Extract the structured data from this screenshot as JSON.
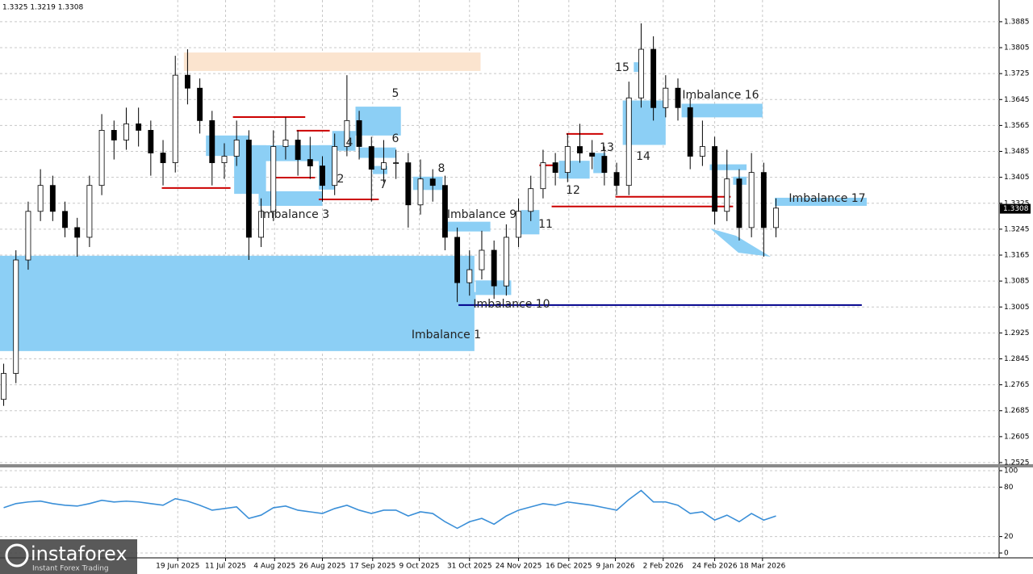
{
  "header": "1.3325 1.3219 1.3308",
  "branding": {
    "name": "instaforex",
    "tagline": "Instant Forex Trading"
  },
  "chart_data": [
    {
      "type": "candlestick",
      "ohlc": [
        [
          1.272,
          1.283,
          1.27,
          1.28
        ],
        [
          1.28,
          1.318,
          1.277,
          1.315
        ],
        [
          1.315,
          1.333,
          1.312,
          1.33
        ],
        [
          1.33,
          1.343,
          1.327,
          1.338
        ],
        [
          1.338,
          1.341,
          1.327,
          1.33
        ],
        [
          1.33,
          1.333,
          1.322,
          1.325
        ],
        [
          1.325,
          1.328,
          1.316,
          1.322
        ],
        [
          1.322,
          1.341,
          1.319,
          1.338
        ],
        [
          1.338,
          1.36,
          1.335,
          1.355
        ],
        [
          1.355,
          1.358,
          1.346,
          1.352
        ],
        [
          1.352,
          1.362,
          1.349,
          1.357
        ],
        [
          1.357,
          1.362,
          1.35,
          1.355
        ],
        [
          1.355,
          1.358,
          1.341,
          1.348
        ],
        [
          1.348,
          1.352,
          1.338,
          1.345
        ],
        [
          1.345,
          1.378,
          1.342,
          1.372
        ],
        [
          1.372,
          1.38,
          1.363,
          1.368
        ],
        [
          1.368,
          1.371,
          1.354,
          1.358
        ],
        [
          1.358,
          1.361,
          1.338,
          1.345
        ],
        [
          1.345,
          1.351,
          1.34,
          1.347
        ],
        [
          1.347,
          1.358,
          1.344,
          1.352
        ],
        [
          1.352,
          1.355,
          1.315,
          1.322
        ],
        [
          1.322,
          1.334,
          1.319,
          1.33
        ],
        [
          1.33,
          1.355,
          1.327,
          1.35
        ],
        [
          1.35,
          1.359,
          1.346,
          1.352
        ],
        [
          1.352,
          1.355,
          1.341,
          1.346
        ],
        [
          1.346,
          1.353,
          1.34,
          1.344
        ],
        [
          1.344,
          1.347,
          1.333,
          1.338
        ],
        [
          1.338,
          1.354,
          1.335,
          1.35
        ],
        [
          1.35,
          1.372,
          1.347,
          1.358
        ],
        [
          1.358,
          1.361,
          1.346,
          1.35
        ],
        [
          1.35,
          1.353,
          1.333,
          1.343
        ],
        [
          1.343,
          1.352,
          1.339,
          1.345
        ],
        [
          1.345,
          1.349,
          1.34,
          1.345
        ],
        [
          1.345,
          1.348,
          1.325,
          1.332
        ],
        [
          1.332,
          1.346,
          1.329,
          1.34
        ],
        [
          1.34,
          1.343,
          1.333,
          1.338
        ],
        [
          1.338,
          1.341,
          1.318,
          1.322
        ],
        [
          1.322,
          1.325,
          1.302,
          1.308
        ],
        [
          1.308,
          1.318,
          1.304,
          1.312
        ],
        [
          1.312,
          1.324,
          1.309,
          1.318
        ],
        [
          1.318,
          1.321,
          1.303,
          1.307
        ],
        [
          1.307,
          1.326,
          1.304,
          1.322
        ],
        [
          1.322,
          1.334,
          1.319,
          1.33
        ],
        [
          1.33,
          1.341,
          1.327,
          1.337
        ],
        [
          1.337,
          1.349,
          1.334,
          1.345
        ],
        [
          1.345,
          1.348,
          1.338,
          1.342
        ],
        [
          1.342,
          1.354,
          1.339,
          1.35
        ],
        [
          1.35,
          1.357,
          1.345,
          1.348
        ],
        [
          1.348,
          1.352,
          1.343,
          1.347
        ],
        [
          1.347,
          1.35,
          1.338,
          1.342
        ],
        [
          1.342,
          1.345,
          1.335,
          1.338
        ],
        [
          1.338,
          1.37,
          1.335,
          1.365
        ],
        [
          1.365,
          1.388,
          1.362,
          1.38
        ],
        [
          1.38,
          1.384,
          1.358,
          1.362
        ],
        [
          1.362,
          1.372,
          1.359,
          1.368
        ],
        [
          1.368,
          1.371,
          1.358,
          1.362
        ],
        [
          1.362,
          1.365,
          1.343,
          1.347
        ],
        [
          1.347,
          1.358,
          1.344,
          1.35
        ],
        [
          1.35,
          1.353,
          1.326,
          1.33
        ],
        [
          1.33,
          1.349,
          1.327,
          1.34
        ],
        [
          1.34,
          1.343,
          1.321,
          1.325
        ],
        [
          1.325,
          1.348,
          1.322,
          1.342
        ],
        [
          1.342,
          1.345,
          1.316,
          1.325
        ],
        [
          1.325,
          1.334,
          1.322,
          1.331
        ]
      ],
      "xlim": [
        -0.3,
        81.2
      ],
      "ylim": [
        1.252,
        1.3952
      ],
      "yticks": [
        1.3885,
        1.3805,
        1.3725,
        1.3645,
        1.3565,
        1.3485,
        1.3405,
        1.3325,
        1.3245,
        1.3165,
        1.3085,
        1.3005,
        1.2925,
        1.2845,
        1.2765,
        1.2685,
        1.2605,
        1.2525
      ],
      "grid": true,
      "last_price": 1.3308,
      "zones": [
        {
          "label": "Imbalance 1",
          "x": [
            -0.3,
            38.4
          ],
          "y": [
            1.2869,
            1.3163
          ],
          "color": "#8ccff5"
        },
        {
          "label": null,
          "x": [
            14.7,
            38.9
          ],
          "y": [
            1.3733,
            1.379
          ],
          "color": "#fbe4cf"
        },
        {
          "label": null,
          "x": [
            16.5,
            20.0
          ],
          "y": [
            1.3471,
            1.3534
          ],
          "color": "#8ccff5"
        },
        {
          "label": null,
          "x": [
            18.8,
            21.4
          ],
          "y": [
            1.3354,
            1.3504
          ],
          "color": "#8ccff5"
        },
        {
          "label": null,
          "x": [
            20.1,
            26.7
          ],
          "y": [
            1.3455,
            1.3504
          ],
          "color": "#8ccff5"
        },
        {
          "label": "Imbalance 3",
          "x": [
            20.8,
            26.0
          ],
          "y": [
            1.3317,
            1.3362
          ],
          "color": "#8ccff5"
        },
        {
          "label": "2",
          "x": [
            25.7,
            27.0
          ],
          "y": [
            1.3367,
            1.3504
          ],
          "color": "#8ccff5"
        },
        {
          "label": "4",
          "x": [
            26.8,
            28.7
          ],
          "y": [
            1.3487,
            1.3548
          ],
          "color": "#8ccff5"
        },
        {
          "label": "5",
          "x": [
            28.7,
            32.4
          ],
          "y": [
            1.3534,
            1.3623
          ],
          "color": "#8ccff5"
        },
        {
          "label": "6",
          "x": [
            29.0,
            32.0
          ],
          "y": [
            1.3465,
            1.3497
          ],
          "color": "#8ccff5"
        },
        {
          "label": "7",
          "x": [
            30.1,
            31.3
          ],
          "y": [
            1.3415,
            1.344
          ],
          "color": "#8ccff5"
        },
        {
          "label": "8",
          "x": [
            33.4,
            35.8
          ],
          "y": [
            1.3366,
            1.3407
          ],
          "color": "#8ccff5"
        },
        {
          "label": "Imbalance 9",
          "x": [
            36.2,
            39.7
          ],
          "y": [
            1.3238,
            1.3268
          ],
          "color": "#8ccff5"
        },
        {
          "label": "Imbalance 10",
          "x": [
            38.5,
            41.4
          ],
          "y": [
            1.3042,
            1.3087
          ],
          "color": "#8ccff5"
        },
        {
          "label": null,
          "x": [
            37.1,
            38.5
          ],
          "y": [
            1.3011,
            1.3051
          ],
          "color": "#8ccff5"
        },
        {
          "label": "11",
          "x": [
            42.2,
            43.7
          ],
          "y": [
            1.3229,
            1.3304
          ],
          "color": "#8ccff5"
        },
        {
          "label": "12",
          "x": [
            45.3,
            47.8
          ],
          "y": [
            1.3401,
            1.3456
          ],
          "color": "#8ccff5"
        },
        {
          "label": "13",
          "x": [
            48.1,
            49.1
          ],
          "y": [
            1.3418,
            1.348
          ],
          "color": "#8ccff5"
        },
        {
          "label": "14",
          "x": [
            50.5,
            54.0
          ],
          "y": [
            1.3505,
            1.3642
          ],
          "color": "#8ccff5"
        },
        {
          "label": "15",
          "x": [
            51.4,
            52.0
          ],
          "y": [
            1.373,
            1.376
          ],
          "color": "#8ccff5"
        },
        {
          "label": "Imbalance 16",
          "x": [
            55.3,
            61.9
          ],
          "y": [
            1.359,
            1.3632
          ],
          "color": "#8ccff5"
        },
        {
          "label": null,
          "x": [
            57.6,
            60.6
          ],
          "y": [
            1.3427,
            1.3445
          ],
          "color": "#8ccff5"
        },
        {
          "label": null,
          "x": [
            59.5,
            60.6
          ],
          "y": [
            1.3382,
            1.3407
          ],
          "color": "#8ccff5"
        },
        {
          "label": "Imbalance 17",
          "x": [
            62.9,
            70.4
          ],
          "y": [
            1.3317,
            1.3342
          ],
          "color": "#8ccff5"
        }
      ],
      "levels": [
        {
          "x": [
            12.9,
            18.5
          ],
          "y": 1.3372,
          "color": "#cc0000"
        },
        {
          "x": [
            18.7,
            24.6
          ],
          "y": 1.3591,
          "color": "#cc0000"
        },
        {
          "x": [
            21.8,
            25.4
          ],
          "y": 1.3404,
          "color": "#cc0000"
        },
        {
          "x": [
            23.9,
            26.6
          ],
          "y": 1.3549,
          "color": "#cc0000"
        },
        {
          "x": [
            25.7,
            30.6
          ],
          "y": 1.3337,
          "color": "#cc0000"
        },
        {
          "x": [
            45.9,
            48.9
          ],
          "y": 1.3539,
          "color": "#cc0000"
        },
        {
          "x": [
            43.7,
            45.1
          ],
          "y": 1.3442,
          "color": "#cc0000"
        },
        {
          "x": [
            49.9,
            59.3
          ],
          "y": 1.3345,
          "color": "#cc0000"
        },
        {
          "x": [
            44.7,
            59.5
          ],
          "y": 1.3315,
          "color": "#cc0000"
        },
        {
          "x": [
            37.1,
            70.0
          ],
          "y": 1.3011,
          "color": "#00008b"
        }
      ]
    },
    {
      "type": "line",
      "series": [
        {
          "color": "#3a8fd8",
          "values": [
            55,
            60,
            62,
            63,
            60,
            58,
            57,
            60,
            64,
            62,
            63,
            62,
            60,
            58,
            66,
            63,
            58,
            52,
            54,
            56,
            42,
            46,
            55,
            57,
            52,
            50,
            48,
            54,
            58,
            52,
            48,
            52,
            52,
            45,
            50,
            48,
            38,
            30,
            38,
            42,
            35,
            45,
            52,
            56,
            60,
            58,
            62,
            60,
            58,
            55,
            52,
            65,
            76,
            62,
            62,
            58,
            48,
            50,
            40,
            46,
            38,
            48,
            40,
            45
          ]
        }
      ],
      "xlim": [
        -0.3,
        81.2
      ],
      "ylim": [
        0,
        100
      ],
      "yticks": [
        0,
        20,
        80,
        100
      ],
      "xticks": [
        {
          "value": 14.2,
          "label": "19 Jun 2025"
        },
        {
          "value": 18.1,
          "label": "11 Jul 2025"
        },
        {
          "value": 22.1,
          "label": "4 Aug 2025"
        },
        {
          "value": 26.0,
          "label": "26 Aug 2025"
        },
        {
          "value": 30.1,
          "label": "17 Sep 2025"
        },
        {
          "value": 33.9,
          "label": "9 Oct 2025"
        },
        {
          "value": 38.0,
          "label": "31 Oct 2025"
        },
        {
          "value": 42.0,
          "label": "24 Nov 2025"
        },
        {
          "value": 46.1,
          "label": "16 Dec 2025"
        },
        {
          "value": 49.9,
          "label": "9 Jan 2026"
        },
        {
          "value": 53.8,
          "label": "2 Feb 2026"
        },
        {
          "value": 58.0,
          "label": "24 Feb 2026"
        },
        {
          "value": 61.9,
          "label": "18 Mar 2026"
        }
      ],
      "grid": true
    }
  ]
}
